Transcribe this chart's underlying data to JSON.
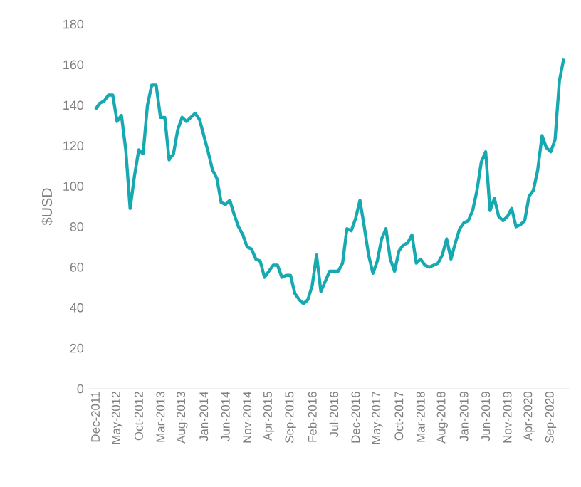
{
  "chart_data": {
    "type": "line",
    "ylabel": "$USD",
    "categories": [
      "Dec-2011",
      null,
      null,
      null,
      null,
      "May-2012",
      null,
      null,
      null,
      null,
      "Oct-2012",
      null,
      null,
      null,
      null,
      "Mar-2013",
      null,
      null,
      null,
      null,
      "Aug-2013",
      null,
      null,
      null,
      null,
      "Jan-2014",
      null,
      null,
      null,
      null,
      "Jun-2014",
      null,
      null,
      null,
      null,
      "Nov-2014",
      null,
      null,
      null,
      null,
      "Apr-2015",
      null,
      null,
      null,
      null,
      "Sep-2015",
      null,
      null,
      null,
      null,
      "Feb-2016",
      null,
      null,
      null,
      null,
      "Jul-2016",
      null,
      null,
      null,
      null,
      "Dec-2016",
      null,
      null,
      null,
      null,
      "May-2017",
      null,
      null,
      null,
      null,
      "Oct-2017",
      null,
      null,
      null,
      null,
      "Mar-2018",
      null,
      null,
      null,
      null,
      "Aug-2018",
      null,
      null,
      null,
      null,
      "Jan-2019",
      null,
      null,
      null,
      null,
      "Jun-2019",
      null,
      null,
      null,
      null,
      "Nov-2019",
      null,
      null,
      null,
      null,
      "Apr-2020",
      null,
      null,
      null,
      null,
      "Sep-2020",
      null,
      null,
      null
    ],
    "values": [
      138,
      141,
      142,
      145,
      145,
      132,
      135,
      118,
      89,
      105,
      118,
      116,
      140,
      150,
      150,
      134,
      134,
      113,
      116,
      128,
      134,
      132,
      134,
      136,
      133,
      125,
      117,
      108,
      104,
      92,
      91,
      93,
      86,
      80,
      76,
      70,
      69,
      64,
      63,
      55,
      58,
      61,
      61,
      55,
      56,
      56,
      47,
      44,
      42,
      44,
      51,
      66,
      48,
      53,
      58,
      58,
      58,
      62,
      79,
      78,
      84,
      93,
      80,
      66,
      57,
      63,
      74,
      79,
      64,
      58,
      68,
      71,
      72,
      76,
      62,
      64,
      61,
      60,
      61,
      62,
      66,
      74,
      64,
      72,
      79,
      82,
      83,
      88,
      98,
      112,
      117,
      88,
      94,
      85,
      83,
      85,
      89,
      80,
      81,
      83,
      95,
      98,
      108,
      125,
      119,
      117,
      123,
      152,
      163
    ],
    "color": "#17a9b1",
    "ylim": [
      0,
      180
    ],
    "yticks": [
      0,
      20,
      40,
      60,
      80,
      100,
      120,
      140,
      160,
      180
    ]
  }
}
